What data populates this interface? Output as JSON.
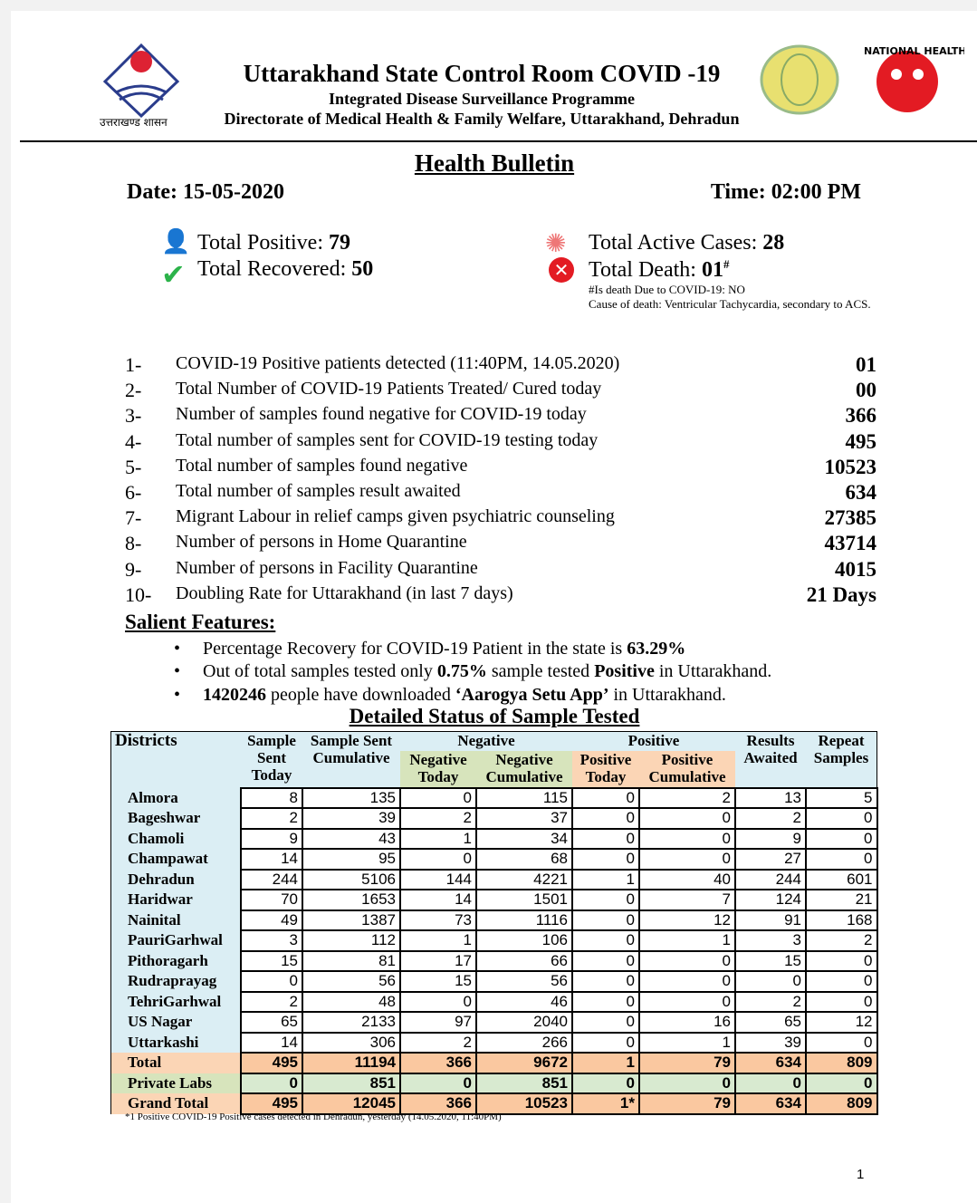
{
  "header": {
    "title": "Uttarakhand State Control Room COVID -19",
    "subtitle1": "Integrated Disease Surveillance Programme",
    "subtitle2": "Directorate of Medical Health & Family Welfare, Uttarakhand, Dehradun",
    "left_logo_caption": "उत्तराखण्ड शासन",
    "right_logo_text": "NATIONAL HEALTH MISSION"
  },
  "bulletin": {
    "heading": "Health Bulletin",
    "date": "Date: 15-05-2020",
    "time": "Time: 02:00 PM"
  },
  "summary": {
    "positive_label": "Total Positive: ",
    "positive": "79",
    "recovered_label": "Total Recovered: ",
    "recovered": "50",
    "active_label": "Total Active Cases: ",
    "active": "28",
    "death_label": "Total Death: ",
    "death": "01",
    "death_mark": "#",
    "note1": "#Is death Due to COVID-19: NO",
    "note2": "Cause of death: Ventricular Tachycardia, secondary to ACS."
  },
  "items": [
    {
      "n": "1-",
      "t": "COVID-19 Positive patients detected (11:40PM, 14.05.2020)",
      "v": "01"
    },
    {
      "n": "2-",
      "t": "Total Number of COVID-19 Patients Treated/ Cured today",
      "v": "00"
    },
    {
      "n": "3-",
      "t": "Number of samples found negative for COVID-19 today",
      "v": "366"
    },
    {
      "n": "4-",
      "t": "Total number of samples sent for COVID-19 testing today",
      "v": "495"
    },
    {
      "n": "5-",
      "t": "Total number of samples found negative",
      "v": "10523"
    },
    {
      "n": "6-",
      "t": "Total number of samples result awaited",
      "v": "634"
    },
    {
      "n": "7-",
      "t": "Migrant Labour in relief camps given psychiatric counseling",
      "v": "27385"
    },
    {
      "n": "8-",
      "t": "Number of persons in Home Quarantine",
      "v": "43714"
    },
    {
      "n": "9-",
      "t": "Number of persons in Facility Quarantine",
      "v": "4015"
    },
    {
      "n": "10-",
      "t": "Doubling Rate for Uttarakhand (in last 7 days)",
      "v": "21 Days"
    }
  ],
  "salient": {
    "heading": "Salient Features:",
    "b1a": "Percentage Recovery for COVID-19 Patient in the state is ",
    "b1b": "63.29%",
    "b2a": "Out of total samples tested only ",
    "b2b": "0.75%",
    "b2c": " sample tested ",
    "b2d": "Positive",
    "b2e": " in Uttarakhand.",
    "b3a": "1420246",
    "b3b": " people have downloaded ",
    "b3c": "‘Aarogya Setu App’",
    "b3d": " in Uttarakhand."
  },
  "table": {
    "title": "Detailed Status of Sample Tested",
    "headers": {
      "districts": "Districts",
      "sst": "Sample Sent Today",
      "ssc": "Sample Sent Cumulative",
      "neg": "Negative",
      "negt": "Negative Today",
      "negc": "Negative Cumulative",
      "pos": "Positive",
      "post": "Positive Today",
      "posc": "Positive Cumulative",
      "ra": "Results Awaited",
      "rs": "Repeat Samples"
    },
    "rows": [
      [
        "Almora",
        "8",
        "135",
        "0",
        "115",
        "0",
        "2",
        "13",
        "5"
      ],
      [
        "Bageshwar",
        "2",
        "39",
        "2",
        "37",
        "0",
        "0",
        "2",
        "0"
      ],
      [
        "Chamoli",
        "9",
        "43",
        "1",
        "34",
        "0",
        "0",
        "9",
        "0"
      ],
      [
        "Champawat",
        "14",
        "95",
        "0",
        "68",
        "0",
        "0",
        "27",
        "0"
      ],
      [
        "Dehradun",
        "244",
        "5106",
        "144",
        "4221",
        "1",
        "40",
        "244",
        "601"
      ],
      [
        "Haridwar",
        "70",
        "1653",
        "14",
        "1501",
        "0",
        "7",
        "124",
        "21"
      ],
      [
        "Nainital",
        "49",
        "1387",
        "73",
        "1116",
        "0",
        "12",
        "91",
        "168"
      ],
      [
        "PauriGarhwal",
        "3",
        "112",
        "1",
        "106",
        "0",
        "1",
        "3",
        "2"
      ],
      [
        "Pithoragarh",
        "15",
        "81",
        "17",
        "66",
        "0",
        "0",
        "15",
        "0"
      ],
      [
        "Rudraprayag",
        "0",
        "56",
        "15",
        "56",
        "0",
        "0",
        "0",
        "0"
      ],
      [
        "TehriGarhwal",
        "2",
        "48",
        "0",
        "46",
        "0",
        "0",
        "2",
        "0"
      ],
      [
        "US Nagar",
        "65",
        "2133",
        "97",
        "2040",
        "0",
        "16",
        "65",
        "12"
      ],
      [
        "Uttarkashi",
        "14",
        "306",
        "2",
        "266",
        "0",
        "1",
        "39",
        "0"
      ]
    ],
    "total": [
      "Total",
      "495",
      "11194",
      "366",
      "9672",
      "1",
      "79",
      "634",
      "809"
    ],
    "private": [
      "Private Labs",
      "0",
      "851",
      "0",
      "851",
      "0",
      "0",
      "0",
      "0"
    ],
    "grand": [
      "Grand Total",
      "495",
      "12045",
      "366",
      "10523",
      "1*",
      "79",
      "634",
      "809"
    ],
    "footnote": "*1 Positive COVID-19 Positive cases detected in Dehradun, yesterday (14.05.2020, 11:40PM)"
  },
  "page_number": "1"
}
